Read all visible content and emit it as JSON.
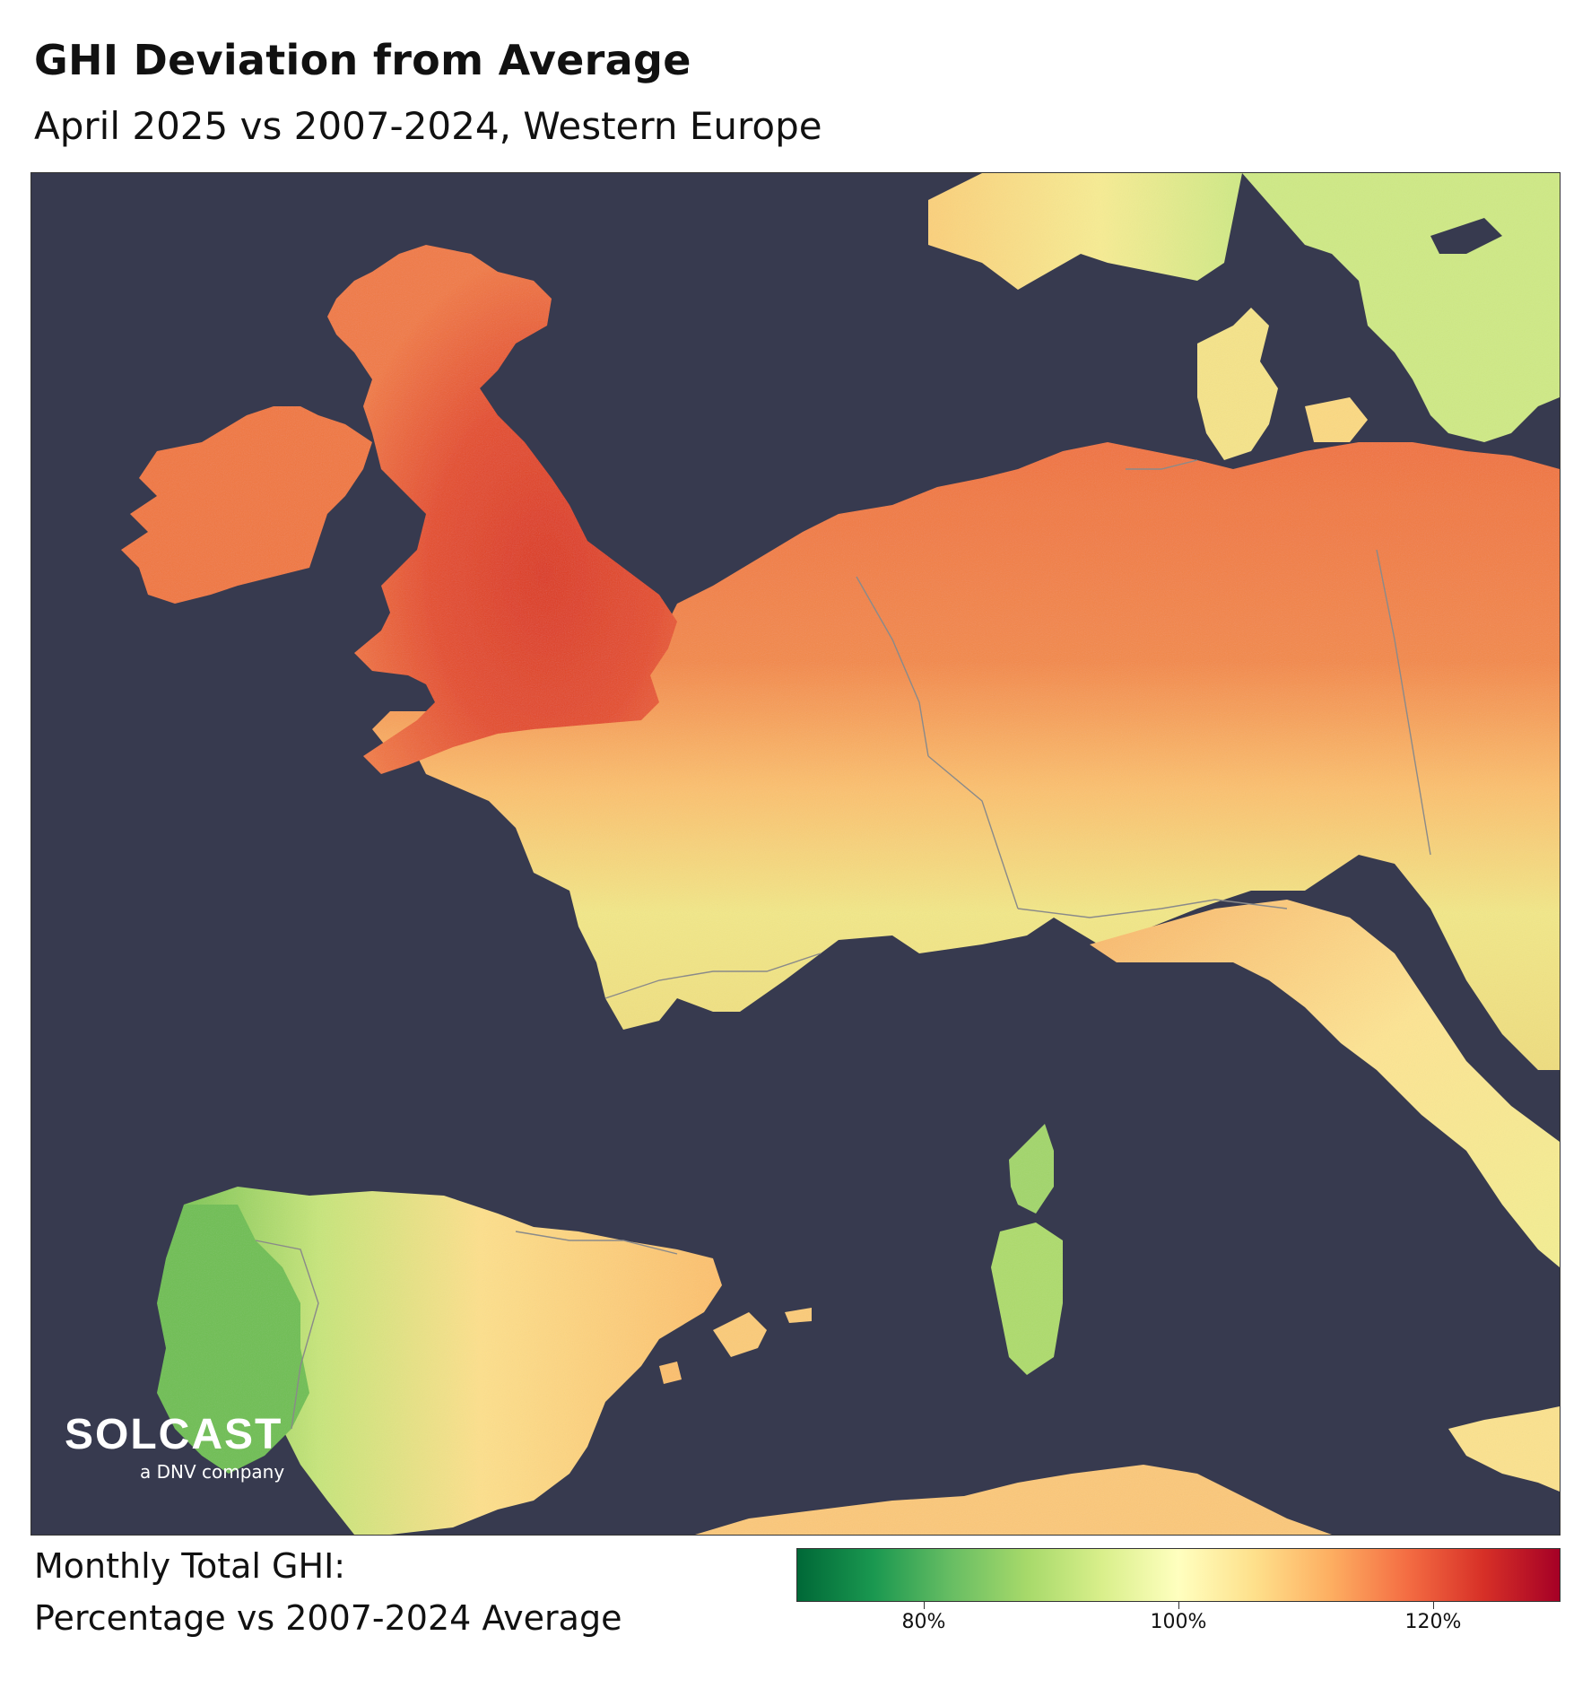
{
  "title": "GHI Deviation from Average",
  "subtitle": "April 2025 vs 2007-2024, Western Europe",
  "legend": {
    "line1": "Monthly Total GHI:",
    "line2": "Percentage vs 2007-2024 Average",
    "colors": [
      "#006837",
      "#1a9850",
      "#66bd63",
      "#a6d96a",
      "#d9ef8b",
      "#ffffbf",
      "#fee08b",
      "#fdae61",
      "#f46d43",
      "#d73027",
      "#a50026"
    ],
    "min_value": 70,
    "max_value": 130,
    "ticks": [
      {
        "value": 80,
        "label": "80%"
      },
      {
        "value": 100,
        "label": "100%"
      },
      {
        "value": 120,
        "label": "120%"
      }
    ]
  },
  "logo": {
    "brand": "SOLCAST",
    "tagline": "a DNV company"
  },
  "colors": {
    "sea": "#373a4f",
    "border": "#8a8a8a"
  },
  "regions": [
    {
      "name": "Great Britain",
      "value": 122
    },
    {
      "name": "Ireland",
      "value": 116
    },
    {
      "name": "Northern France",
      "value": 118
    },
    {
      "name": "Southern France",
      "value": 103
    },
    {
      "name": "Germany",
      "value": 117
    },
    {
      "name": "Spain",
      "value": 106
    },
    {
      "name": "Portugal",
      "value": 91
    },
    {
      "name": "Italy",
      "value": 104
    },
    {
      "name": "Corsica",
      "value": 94
    },
    {
      "name": "Sardinia",
      "value": 95
    },
    {
      "name": "Denmark",
      "value": 103
    },
    {
      "name": "Norway",
      "value": 105
    },
    {
      "name": "Sweden",
      "value": 96
    }
  ]
}
